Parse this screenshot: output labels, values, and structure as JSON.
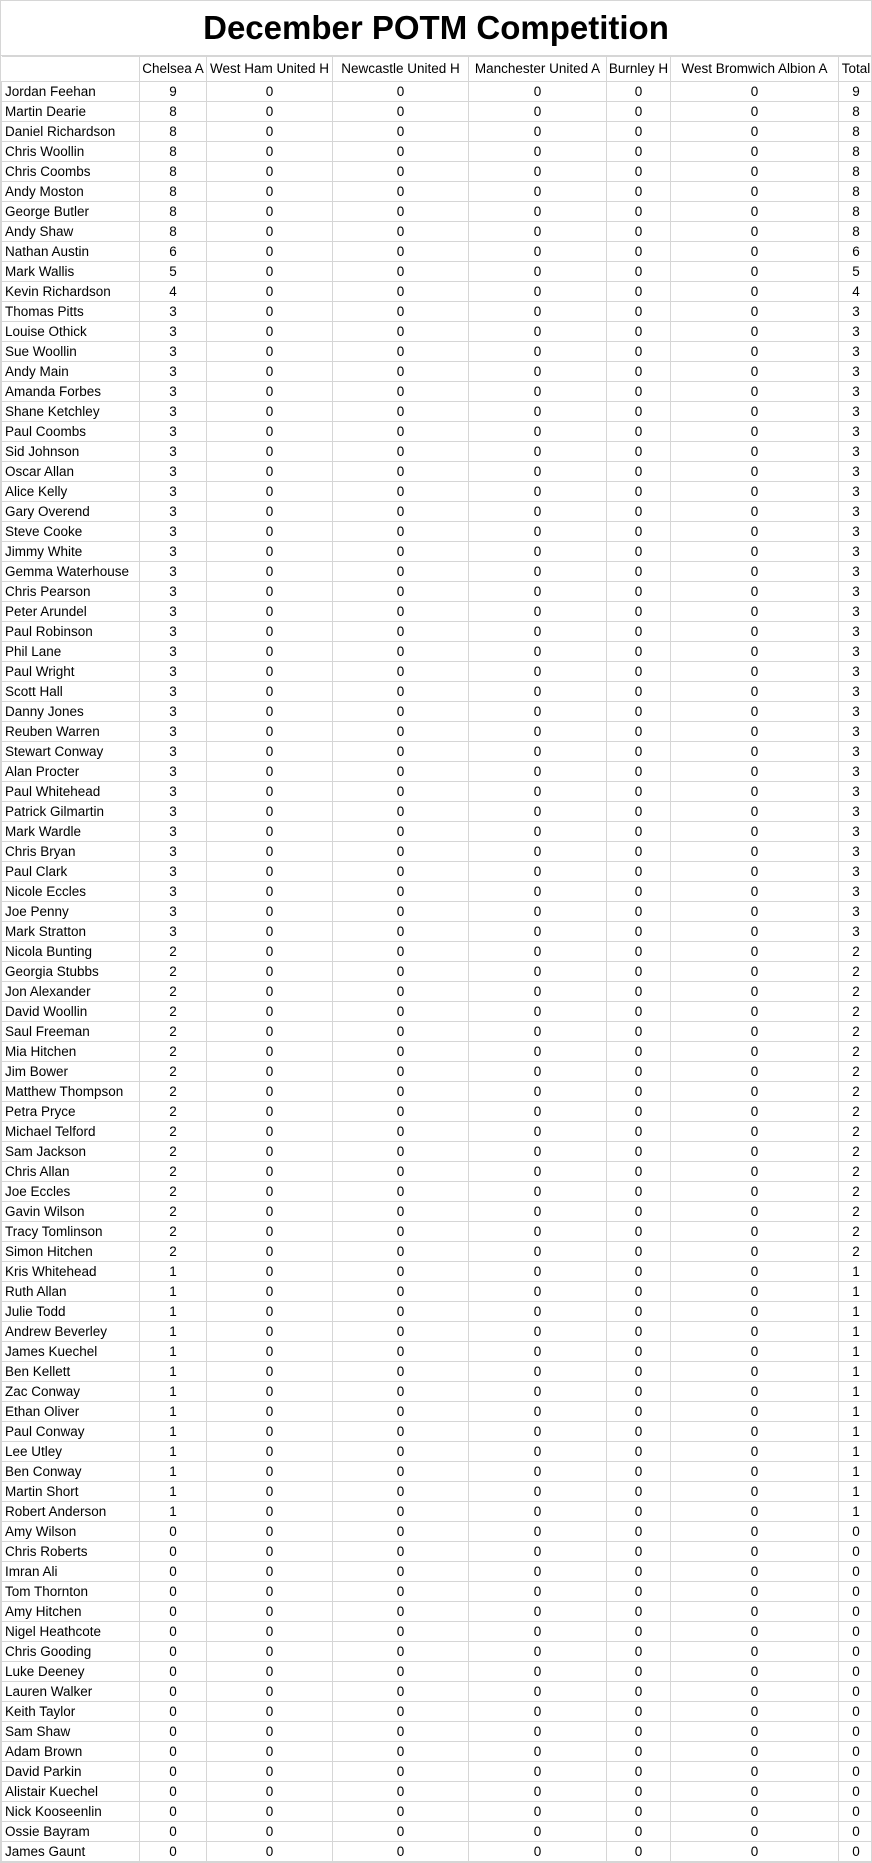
{
  "title": "December POTM Competition",
  "table": {
    "corner_header": "",
    "columns": [
      "Chelsea A",
      "West Ham United H",
      "Newcastle United H",
      "Manchester United A",
      "Burnley H",
      "West Bromwich Albion A",
      "Total"
    ],
    "rows": [
      [
        "Jordan Feehan",
        9,
        0,
        0,
        0,
        0,
        0,
        9
      ],
      [
        "Martin Dearie",
        8,
        0,
        0,
        0,
        0,
        0,
        8
      ],
      [
        "Daniel Richardson",
        8,
        0,
        0,
        0,
        0,
        0,
        8
      ],
      [
        "Chris Woollin",
        8,
        0,
        0,
        0,
        0,
        0,
        8
      ],
      [
        "Chris Coombs",
        8,
        0,
        0,
        0,
        0,
        0,
        8
      ],
      [
        "Andy Moston",
        8,
        0,
        0,
        0,
        0,
        0,
        8
      ],
      [
        "George Butler",
        8,
        0,
        0,
        0,
        0,
        0,
        8
      ],
      [
        "Andy Shaw",
        8,
        0,
        0,
        0,
        0,
        0,
        8
      ],
      [
        "Nathan Austin",
        6,
        0,
        0,
        0,
        0,
        0,
        6
      ],
      [
        "Mark Wallis",
        5,
        0,
        0,
        0,
        0,
        0,
        5
      ],
      [
        "Kevin Richardson",
        4,
        0,
        0,
        0,
        0,
        0,
        4
      ],
      [
        "Thomas Pitts",
        3,
        0,
        0,
        0,
        0,
        0,
        3
      ],
      [
        "Louise Othick",
        3,
        0,
        0,
        0,
        0,
        0,
        3
      ],
      [
        "Sue Woollin",
        3,
        0,
        0,
        0,
        0,
        0,
        3
      ],
      [
        "Andy Main",
        3,
        0,
        0,
        0,
        0,
        0,
        3
      ],
      [
        "Amanda Forbes",
        3,
        0,
        0,
        0,
        0,
        0,
        3
      ],
      [
        "Shane Ketchley",
        3,
        0,
        0,
        0,
        0,
        0,
        3
      ],
      [
        "Paul Coombs",
        3,
        0,
        0,
        0,
        0,
        0,
        3
      ],
      [
        "Sid Johnson",
        3,
        0,
        0,
        0,
        0,
        0,
        3
      ],
      [
        "Oscar Allan",
        3,
        0,
        0,
        0,
        0,
        0,
        3
      ],
      [
        "Alice Kelly",
        3,
        0,
        0,
        0,
        0,
        0,
        3
      ],
      [
        "Gary Overend",
        3,
        0,
        0,
        0,
        0,
        0,
        3
      ],
      [
        "Steve Cooke",
        3,
        0,
        0,
        0,
        0,
        0,
        3
      ],
      [
        "Jimmy White",
        3,
        0,
        0,
        0,
        0,
        0,
        3
      ],
      [
        "Gemma Waterhouse",
        3,
        0,
        0,
        0,
        0,
        0,
        3
      ],
      [
        "Chris Pearson",
        3,
        0,
        0,
        0,
        0,
        0,
        3
      ],
      [
        "Peter Arundel",
        3,
        0,
        0,
        0,
        0,
        0,
        3
      ],
      [
        "Paul Robinson",
        3,
        0,
        0,
        0,
        0,
        0,
        3
      ],
      [
        "Phil Lane",
        3,
        0,
        0,
        0,
        0,
        0,
        3
      ],
      [
        "Paul Wright",
        3,
        0,
        0,
        0,
        0,
        0,
        3
      ],
      [
        "Scott Hall",
        3,
        0,
        0,
        0,
        0,
        0,
        3
      ],
      [
        "Danny Jones",
        3,
        0,
        0,
        0,
        0,
        0,
        3
      ],
      [
        "Reuben Warren",
        3,
        0,
        0,
        0,
        0,
        0,
        3
      ],
      [
        "Stewart Conway",
        3,
        0,
        0,
        0,
        0,
        0,
        3
      ],
      [
        "Alan Procter",
        3,
        0,
        0,
        0,
        0,
        0,
        3
      ],
      [
        "Paul Whitehead",
        3,
        0,
        0,
        0,
        0,
        0,
        3
      ],
      [
        "Patrick Gilmartin",
        3,
        0,
        0,
        0,
        0,
        0,
        3
      ],
      [
        "Mark Wardle",
        3,
        0,
        0,
        0,
        0,
        0,
        3
      ],
      [
        "Chris Bryan",
        3,
        0,
        0,
        0,
        0,
        0,
        3
      ],
      [
        "Paul Clark",
        3,
        0,
        0,
        0,
        0,
        0,
        3
      ],
      [
        "Nicole Eccles",
        3,
        0,
        0,
        0,
        0,
        0,
        3
      ],
      [
        "Joe Penny",
        3,
        0,
        0,
        0,
        0,
        0,
        3
      ],
      [
        "Mark Stratton",
        3,
        0,
        0,
        0,
        0,
        0,
        3
      ],
      [
        "Nicola Bunting",
        2,
        0,
        0,
        0,
        0,
        0,
        2
      ],
      [
        "Georgia Stubbs",
        2,
        0,
        0,
        0,
        0,
        0,
        2
      ],
      [
        "Jon Alexander",
        2,
        0,
        0,
        0,
        0,
        0,
        2
      ],
      [
        "David Woollin",
        2,
        0,
        0,
        0,
        0,
        0,
        2
      ],
      [
        "Saul Freeman",
        2,
        0,
        0,
        0,
        0,
        0,
        2
      ],
      [
        "Mia Hitchen",
        2,
        0,
        0,
        0,
        0,
        0,
        2
      ],
      [
        "Jim Bower",
        2,
        0,
        0,
        0,
        0,
        0,
        2
      ],
      [
        "Matthew Thompson",
        2,
        0,
        0,
        0,
        0,
        0,
        2
      ],
      [
        "Petra Pryce",
        2,
        0,
        0,
        0,
        0,
        0,
        2
      ],
      [
        "Michael Telford",
        2,
        0,
        0,
        0,
        0,
        0,
        2
      ],
      [
        "Sam Jackson",
        2,
        0,
        0,
        0,
        0,
        0,
        2
      ],
      [
        "Chris Allan",
        2,
        0,
        0,
        0,
        0,
        0,
        2
      ],
      [
        "Joe Eccles",
        2,
        0,
        0,
        0,
        0,
        0,
        2
      ],
      [
        "Gavin Wilson",
        2,
        0,
        0,
        0,
        0,
        0,
        2
      ],
      [
        "Tracy Tomlinson",
        2,
        0,
        0,
        0,
        0,
        0,
        2
      ],
      [
        "Simon Hitchen",
        2,
        0,
        0,
        0,
        0,
        0,
        2
      ],
      [
        "Kris Whitehead",
        1,
        0,
        0,
        0,
        0,
        0,
        1
      ],
      [
        "Ruth Allan",
        1,
        0,
        0,
        0,
        0,
        0,
        1
      ],
      [
        "Julie Todd",
        1,
        0,
        0,
        0,
        0,
        0,
        1
      ],
      [
        "Andrew Beverley",
        1,
        0,
        0,
        0,
        0,
        0,
        1
      ],
      [
        "James Kuechel",
        1,
        0,
        0,
        0,
        0,
        0,
        1
      ],
      [
        "Ben Kellett",
        1,
        0,
        0,
        0,
        0,
        0,
        1
      ],
      [
        "Zac Conway",
        1,
        0,
        0,
        0,
        0,
        0,
        1
      ],
      [
        "Ethan Oliver",
        1,
        0,
        0,
        0,
        0,
        0,
        1
      ],
      [
        "Paul Conway",
        1,
        0,
        0,
        0,
        0,
        0,
        1
      ],
      [
        "Lee Utley",
        1,
        0,
        0,
        0,
        0,
        0,
        1
      ],
      [
        "Ben Conway",
        1,
        0,
        0,
        0,
        0,
        0,
        1
      ],
      [
        "Martin Short",
        1,
        0,
        0,
        0,
        0,
        0,
        1
      ],
      [
        "Robert Anderson",
        1,
        0,
        0,
        0,
        0,
        0,
        1
      ],
      [
        "Amy Wilson",
        0,
        0,
        0,
        0,
        0,
        0,
        0
      ],
      [
        "Chris Roberts",
        0,
        0,
        0,
        0,
        0,
        0,
        0
      ],
      [
        "Imran Ali",
        0,
        0,
        0,
        0,
        0,
        0,
        0
      ],
      [
        "Tom Thornton",
        0,
        0,
        0,
        0,
        0,
        0,
        0
      ],
      [
        "Amy Hitchen",
        0,
        0,
        0,
        0,
        0,
        0,
        0
      ],
      [
        "Nigel Heathcote",
        0,
        0,
        0,
        0,
        0,
        0,
        0
      ],
      [
        "Chris Gooding",
        0,
        0,
        0,
        0,
        0,
        0,
        0
      ],
      [
        "Luke Deeney",
        0,
        0,
        0,
        0,
        0,
        0,
        0
      ],
      [
        "Lauren Walker",
        0,
        0,
        0,
        0,
        0,
        0,
        0
      ],
      [
        "Keith Taylor",
        0,
        0,
        0,
        0,
        0,
        0,
        0
      ],
      [
        "Sam Shaw",
        0,
        0,
        0,
        0,
        0,
        0,
        0
      ],
      [
        "Adam Brown",
        0,
        0,
        0,
        0,
        0,
        0,
        0
      ],
      [
        "David Parkin",
        0,
        0,
        0,
        0,
        0,
        0,
        0
      ],
      [
        "Alistair Kuechel",
        0,
        0,
        0,
        0,
        0,
        0,
        0
      ],
      [
        "Nick Kooseenlin",
        0,
        0,
        0,
        0,
        0,
        0,
        0
      ],
      [
        "Ossie Bayram",
        0,
        0,
        0,
        0,
        0,
        0,
        0
      ],
      [
        "James Gaunt",
        0,
        0,
        0,
        0,
        0,
        0,
        0
      ]
    ]
  }
}
